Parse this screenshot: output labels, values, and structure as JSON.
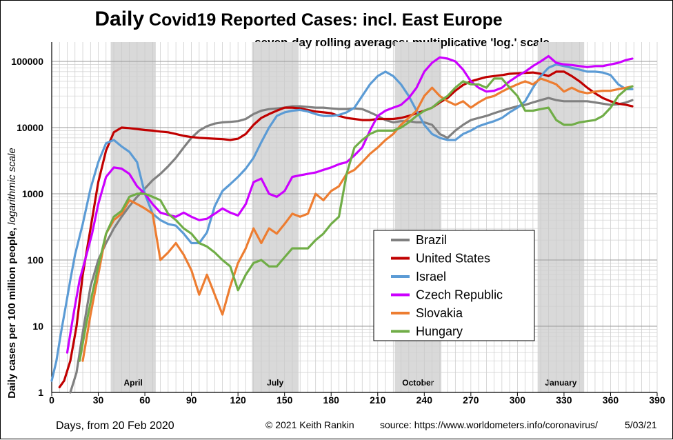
{
  "chart_data": {
    "type": "line",
    "title_bold": "Daily",
    "title_rest": " Covid19 Reported Cases: incl. East Europe",
    "subtitle": "seven-day rolling averages; multiplicative 'log.' scale",
    "ylabel_main": "Daily cases per 100 million people,",
    "ylabel_italic": " logarithmic scale",
    "xlabel": "Days, from 20 Feb 2020",
    "credit": "© 2021  Keith Rankin",
    "source": "source:  https://www.worldometers.info/coronavirus/",
    "date": "5/03/21",
    "x_ticks": [
      0,
      30,
      60,
      90,
      120,
      150,
      180,
      210,
      240,
      270,
      300,
      330,
      360,
      390
    ],
    "y_ticks": [
      1,
      10,
      100,
      1000,
      10000,
      100000
    ],
    "y_tick_labels": [
      "1",
      "10",
      "100",
      "1000",
      "10000",
      "100000"
    ],
    "xlim": [
      0,
      390
    ],
    "ylim": [
      1,
      200000
    ],
    "y_scale": "log",
    "grid": true,
    "legend_position": "center-right",
    "month_bands": [
      {
        "label": "April",
        "start": 38,
        "end": 67
      },
      {
        "label": "July",
        "start": 129,
        "end": 159
      },
      {
        "label": "October",
        "start": 221,
        "end": 251
      },
      {
        "label": "January",
        "start": 313,
        "end": 343
      }
    ],
    "series": [
      {
        "name": "Brazil",
        "color": "#808080",
        "x": [
          12,
          16,
          20,
          25,
          30,
          35,
          40,
          45,
          50,
          55,
          60,
          65,
          70,
          75,
          80,
          85,
          90,
          95,
          100,
          105,
          110,
          115,
          120,
          125,
          130,
          135,
          140,
          145,
          150,
          155,
          160,
          165,
          170,
          175,
          180,
          185,
          190,
          195,
          200,
          205,
          210,
          215,
          220,
          225,
          230,
          235,
          240,
          245,
          250,
          255,
          260,
          265,
          270,
          275,
          280,
          285,
          290,
          295,
          300,
          305,
          310,
          315,
          320,
          325,
          330,
          335,
          340,
          345,
          350,
          355,
          360,
          365,
          370,
          374
        ],
        "y": [
          1,
          2,
          8,
          40,
          100,
          180,
          300,
          450,
          650,
          900,
          1200,
          1600,
          2000,
          2600,
          3500,
          5000,
          7000,
          9000,
          10500,
          11500,
          12000,
          12200,
          12500,
          13500,
          16000,
          18000,
          19000,
          19500,
          20000,
          21000,
          21000,
          20500,
          20000,
          20000,
          19500,
          19000,
          19000,
          19500,
          19000,
          17000,
          15000,
          13000,
          12000,
          12500,
          12500,
          12000,
          12000,
          11000,
          8000,
          7000,
          9000,
          11000,
          13000,
          14000,
          15000,
          16500,
          18000,
          19500,
          21000,
          22000,
          24000,
          26000,
          28000,
          26000,
          25000,
          25000,
          25000,
          25000,
          24000,
          23000,
          22000,
          22500,
          24000,
          26000
        ]
      },
      {
        "name": "United States",
        "color": "#c00000",
        "x": [
          5,
          8,
          12,
          16,
          20,
          25,
          30,
          35,
          40,
          45,
          50,
          55,
          60,
          65,
          70,
          75,
          80,
          85,
          90,
          95,
          100,
          105,
          110,
          115,
          120,
          125,
          130,
          135,
          140,
          145,
          150,
          155,
          160,
          165,
          170,
          175,
          180,
          185,
          190,
          195,
          200,
          205,
          210,
          215,
          220,
          225,
          230,
          235,
          240,
          245,
          250,
          255,
          260,
          265,
          270,
          275,
          280,
          285,
          290,
          295,
          300,
          305,
          310,
          315,
          320,
          325,
          330,
          335,
          340,
          345,
          350,
          355,
          360,
          365,
          370,
          374
        ],
        "y": [
          1.2,
          1.5,
          3,
          10,
          60,
          300,
          1500,
          4500,
          8500,
          10000,
          9800,
          9500,
          9200,
          9000,
          8700,
          8500,
          8000,
          7500,
          7200,
          7000,
          6900,
          6800,
          6700,
          6500,
          6800,
          8000,
          11000,
          14000,
          16000,
          18000,
          20000,
          20000,
          19500,
          18500,
          17500,
          17000,
          16500,
          15000,
          14000,
          13500,
          13000,
          13000,
          13500,
          13500,
          13500,
          14000,
          15000,
          16500,
          18000,
          20000,
          24000,
          28000,
          36000,
          44000,
          50000,
          54000,
          58000,
          60000,
          62000,
          65000,
          66000,
          67000,
          68000,
          65000,
          60000,
          70000,
          70000,
          60000,
          50000,
          40000,
          33000,
          28000,
          25000,
          23000,
          22000,
          21000
        ]
      },
      {
        "name": "Israel",
        "color": "#5b9bd5",
        "x": [
          0,
          3,
          6,
          9,
          12,
          15,
          20,
          25,
          30,
          35,
          40,
          45,
          50,
          55,
          60,
          65,
          70,
          75,
          80,
          85,
          90,
          95,
          100,
          105,
          110,
          115,
          120,
          125,
          130,
          135,
          140,
          145,
          150,
          155,
          160,
          165,
          170,
          175,
          180,
          185,
          190,
          195,
          200,
          205,
          210,
          215,
          220,
          225,
          230,
          235,
          240,
          245,
          250,
          255,
          260,
          265,
          270,
          275,
          280,
          285,
          290,
          295,
          300,
          305,
          310,
          315,
          320,
          325,
          330,
          335,
          340,
          345,
          350,
          355,
          360,
          365,
          370,
          374
        ],
        "y": [
          1.5,
          3,
          8,
          20,
          50,
          120,
          350,
          1200,
          3000,
          5800,
          6500,
          5200,
          4300,
          3000,
          1000,
          500,
          400,
          350,
          330,
          250,
          180,
          180,
          260,
          650,
          1100,
          1400,
          1800,
          2400,
          3500,
          6000,
          10000,
          15000,
          17000,
          18000,
          18500,
          17500,
          16000,
          15000,
          15000,
          15500,
          17000,
          20000,
          30000,
          45000,
          60000,
          70000,
          60000,
          45000,
          30000,
          18000,
          11000,
          8000,
          7000,
          6500,
          6500,
          8000,
          9000,
          10500,
          11500,
          12500,
          14000,
          17000,
          20000,
          25000,
          40000,
          60000,
          80000,
          90000,
          85000,
          80000,
          75000,
          70000,
          70000,
          68000,
          62000,
          45000,
          38000,
          38000
        ]
      },
      {
        "name": "Czech Republic",
        "color": "#cc00ff",
        "x": [
          10,
          14,
          18,
          22,
          26,
          30,
          35,
          40,
          45,
          50,
          55,
          60,
          65,
          70,
          75,
          80,
          85,
          90,
          95,
          100,
          105,
          110,
          115,
          120,
          125,
          130,
          135,
          140,
          145,
          150,
          155,
          160,
          165,
          170,
          175,
          180,
          185,
          190,
          195,
          200,
          205,
          210,
          215,
          220,
          225,
          230,
          235,
          240,
          245,
          250,
          255,
          260,
          265,
          270,
          275,
          280,
          285,
          290,
          295,
          300,
          305,
          310,
          315,
          320,
          325,
          330,
          335,
          340,
          345,
          350,
          355,
          360,
          365,
          370,
          374
        ],
        "y": [
          4,
          15,
          50,
          110,
          250,
          700,
          1800,
          2500,
          2400,
          2000,
          1300,
          1000,
          700,
          520,
          480,
          450,
          520,
          450,
          400,
          420,
          500,
          600,
          520,
          470,
          700,
          1500,
          1700,
          1000,
          900,
          1100,
          1800,
          1900,
          2000,
          2100,
          2300,
          2500,
          2800,
          3000,
          3800,
          5000,
          9000,
          15000,
          18000,
          20000,
          22000,
          28000,
          40000,
          70000,
          95000,
          115000,
          110000,
          100000,
          75000,
          50000,
          40000,
          35000,
          36000,
          40000,
          50000,
          60000,
          70000,
          85000,
          100000,
          120000,
          95000,
          90000,
          88000,
          85000,
          82000,
          85000,
          85000,
          90000,
          95000,
          105000,
          110000
        ]
      },
      {
        "name": "Slovakia",
        "color": "#ed7d31",
        "x": [
          20,
          25,
          30,
          35,
          40,
          45,
          50,
          55,
          60,
          65,
          70,
          75,
          80,
          85,
          90,
          95,
          100,
          105,
          110,
          115,
          120,
          125,
          130,
          135,
          140,
          145,
          150,
          155,
          160,
          165,
          170,
          175,
          180,
          185,
          190,
          195,
          200,
          205,
          210,
          215,
          220,
          225,
          230,
          235,
          240,
          245,
          250,
          255,
          260,
          265,
          270,
          275,
          280,
          285,
          290,
          295,
          300,
          305,
          310,
          315,
          320,
          325,
          330,
          335,
          340,
          345,
          350,
          355,
          360,
          365,
          370,
          374
        ],
        "y": [
          3,
          15,
          60,
          250,
          400,
          500,
          800,
          700,
          600,
          500,
          100,
          130,
          180,
          120,
          70,
          30,
          60,
          30,
          15,
          40,
          90,
          150,
          300,
          180,
          300,
          250,
          350,
          500,
          450,
          500,
          1000,
          800,
          1100,
          1300,
          2000,
          2300,
          3000,
          4000,
          5000,
          6500,
          8000,
          11000,
          14000,
          18000,
          30000,
          40000,
          30000,
          25000,
          22000,
          25000,
          20000,
          24000,
          28000,
          30000,
          35000,
          40000,
          45000,
          50000,
          45000,
          55000,
          50000,
          45000,
          35000,
          40000,
          35000,
          33000,
          35000,
          36000,
          36000,
          38000,
          40000,
          42000
        ]
      },
      {
        "name": "Hungary",
        "color": "#70ad47",
        "x": [
          18,
          22,
          26,
          30,
          35,
          40,
          45,
          50,
          55,
          60,
          65,
          70,
          75,
          80,
          85,
          90,
          95,
          100,
          105,
          110,
          115,
          120,
          125,
          130,
          135,
          140,
          145,
          150,
          155,
          160,
          165,
          170,
          175,
          180,
          185,
          190,
          195,
          200,
          205,
          210,
          215,
          220,
          225,
          230,
          235,
          240,
          245,
          250,
          255,
          260,
          265,
          270,
          275,
          280,
          285,
          290,
          295,
          300,
          305,
          310,
          315,
          320,
          325,
          330,
          335,
          340,
          345,
          350,
          355,
          360,
          365,
          370,
          374
        ],
        "y": [
          3,
          10,
          30,
          80,
          250,
          450,
          550,
          900,
          1000,
          1000,
          900,
          800,
          500,
          400,
          300,
          250,
          180,
          160,
          130,
          100,
          80,
          35,
          60,
          90,
          100,
          80,
          80,
          110,
          150,
          150,
          150,
          200,
          250,
          350,
          450,
          2000,
          5000,
          6500,
          8000,
          9000,
          9000,
          9000,
          10000,
          12000,
          15000,
          18000,
          20000,
          25000,
          30000,
          40000,
          50000,
          45000,
          45000,
          40000,
          55000,
          55000,
          40000,
          30000,
          18000,
          18000,
          19000,
          20000,
          13000,
          11000,
          11000,
          12000,
          12500,
          13000,
          15000,
          20000,
          30000,
          38000,
          42000
        ]
      }
    ]
  }
}
